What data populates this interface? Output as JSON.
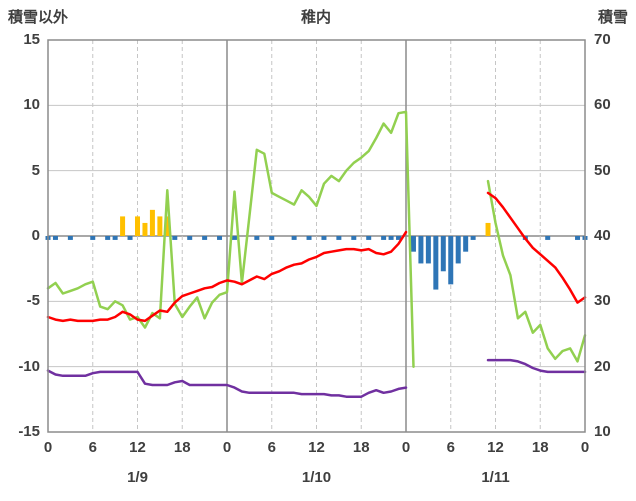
{
  "header": {
    "left_axis_title": "積雪以外",
    "chart_title": "稚内",
    "right_axis_title": "積雪"
  },
  "colors": {
    "red": "#ff0000",
    "green": "#92d050",
    "purple": "#7030a0",
    "orange": "#ffc000",
    "blue": "#2e75b6",
    "grid": "#c6c6c6",
    "axis": "#8c8c8c",
    "text": "#3f3f3f"
  },
  "chart_data": {
    "type": "line",
    "title": "稚内",
    "x_hours_total": 72,
    "x_tick_hours": [
      0,
      6,
      12,
      18,
      24,
      30,
      36,
      42,
      48,
      54,
      60,
      66,
      72
    ],
    "x_tick_labels": [
      "0",
      "6",
      "12",
      "18",
      "0",
      "6",
      "12",
      "18",
      "0",
      "6",
      "12",
      "18",
      "0"
    ],
    "date_labels": [
      {
        "label": "1/9",
        "hour": 12
      },
      {
        "label": "1/10",
        "hour": 36
      },
      {
        "label": "1/11",
        "hour": 60
      }
    ],
    "left_axis": {
      "min": -15,
      "max": 15,
      "ticks": [
        15,
        10,
        5,
        0,
        -5,
        -10,
        -15
      ]
    },
    "right_axis": {
      "min": 10,
      "max": 70,
      "ticks": [
        70,
        60,
        50,
        40,
        30,
        20,
        10
      ]
    },
    "grid": {
      "h_step": 5,
      "v_minor_hours": 6,
      "v_major_hours": 24
    },
    "series": [
      {
        "name": "orange-bars",
        "type": "bar",
        "color_key": "orange",
        "values": [
          0,
          0,
          0,
          0,
          0,
          0,
          0,
          0,
          0,
          0,
          1.5,
          0,
          1.5,
          1.0,
          2.0,
          1.5,
          1.5,
          0,
          0,
          0,
          0,
          0,
          0,
          0,
          0,
          0,
          0,
          0,
          0,
          0,
          0,
          0,
          0,
          0,
          0,
          0,
          0,
          0,
          0,
          0,
          0,
          0,
          0,
          0,
          0,
          0,
          0,
          0,
          0,
          0,
          0,
          0,
          0,
          0,
          0,
          0,
          0,
          0,
          0,
          1.0,
          0,
          0,
          0,
          0,
          0,
          0,
          0,
          0,
          0,
          0,
          0,
          0,
          0
        ]
      },
      {
        "name": "blue-bars",
        "type": "bar",
        "color_key": "blue",
        "values": [
          -0.3,
          -0.3,
          0,
          -0.3,
          0,
          0,
          -0.3,
          0,
          -0.3,
          -0.3,
          0,
          -0.3,
          0,
          0,
          0,
          0,
          0,
          -0.3,
          0,
          -0.3,
          0,
          -0.3,
          0,
          -0.3,
          0,
          -0.3,
          0,
          0,
          -0.3,
          0,
          -0.3,
          0,
          0,
          -0.3,
          0,
          -0.3,
          0,
          -0.3,
          0,
          -0.3,
          0,
          -0.3,
          0,
          -0.3,
          0,
          -0.3,
          -0.3,
          -0.3,
          0,
          -1.2,
          -2.1,
          -2.1,
          -4.1,
          -2.7,
          -3.7,
          -2.1,
          -1.2,
          -0.3,
          0,
          0,
          0,
          0,
          0,
          0,
          -0.3,
          0,
          0,
          -0.3,
          0,
          0,
          0,
          -0.3,
          -0.3
        ]
      },
      {
        "name": "purple-line",
        "type": "line",
        "color_key": "purple",
        "values": [
          -10.3,
          -10.6,
          -10.7,
          -10.7,
          -10.7,
          -10.7,
          -10.5,
          -10.4,
          -10.4,
          -10.4,
          -10.4,
          -10.4,
          -10.4,
          -11.3,
          -11.4,
          -11.4,
          -11.4,
          -11.2,
          -11.1,
          -11.4,
          -11.4,
          -11.4,
          -11.4,
          -11.4,
          -11.4,
          -11.6,
          -11.9,
          -12.0,
          -12.0,
          -12.0,
          -12.0,
          -12.0,
          -12.0,
          -12.0,
          -12.1,
          -12.1,
          -12.1,
          -12.1,
          -12.2,
          -12.2,
          -12.3,
          -12.3,
          -12.3,
          -12.0,
          -11.8,
          -12.0,
          -11.9,
          -11.7,
          -11.6,
          null,
          null,
          null,
          null,
          null,
          null,
          null,
          null,
          null,
          null,
          -9.5,
          -9.5,
          -9.5,
          -9.5,
          -9.6,
          -9.8,
          -10.1,
          -10.3,
          -10.4,
          -10.4,
          -10.4,
          -10.4,
          -10.4,
          -10.4
        ]
      },
      {
        "name": "green-line",
        "type": "line",
        "color_key": "green",
        "values": [
          -4.0,
          -3.6,
          -4.4,
          -4.2,
          -4.0,
          -3.7,
          -3.5,
          -5.4,
          -5.6,
          -5.0,
          -5.3,
          -6.4,
          -6.2,
          -7.0,
          -5.9,
          -6.3,
          3.5,
          -5.2,
          -6.2,
          -5.4,
          -4.7,
          -6.3,
          -5.1,
          -4.5,
          -4.3,
          3.4,
          -3.6,
          1.5,
          6.6,
          6.3,
          3.3,
          3.0,
          2.7,
          2.4,
          3.5,
          3.0,
          2.3,
          4.0,
          4.6,
          4.2,
          5.0,
          5.6,
          6.0,
          6.5,
          7.5,
          8.6,
          7.9,
          9.4,
          9.5,
          -10.0,
          null,
          null,
          null,
          null,
          null,
          null,
          null,
          null,
          null,
          4.2,
          1.0,
          -1.5,
          -3.0,
          -6.3,
          -5.8,
          -7.4,
          -6.8,
          -8.6,
          -9.4,
          -8.8,
          -8.6,
          -9.6,
          -7.6
        ]
      },
      {
        "name": "red-line",
        "type": "line",
        "color_key": "red",
        "values": [
          -6.2,
          -6.4,
          -6.5,
          -6.4,
          -6.5,
          -6.5,
          -6.5,
          -6.4,
          -6.4,
          -6.2,
          -5.8,
          -6.0,
          -6.4,
          -6.5,
          -6.1,
          -5.7,
          -5.8,
          -5.1,
          -4.6,
          -4.4,
          -4.2,
          -4.0,
          -3.9,
          -3.6,
          -3.4,
          -3.5,
          -3.7,
          -3.4,
          -3.1,
          -3.3,
          -2.9,
          -2.7,
          -2.4,
          -2.2,
          -2.1,
          -1.8,
          -1.6,
          -1.3,
          -1.2,
          -1.1,
          -1.0,
          -1.0,
          -1.1,
          -1.0,
          -1.3,
          -1.4,
          -1.2,
          -0.6,
          0.3,
          null,
          null,
          null,
          null,
          null,
          null,
          null,
          null,
          null,
          null,
          3.3,
          2.9,
          2.2,
          1.4,
          0.6,
          -0.2,
          -0.9,
          -1.4,
          -1.9,
          -2.4,
          -3.2,
          -4.1,
          -5.1,
          -4.7
        ]
      }
    ]
  }
}
